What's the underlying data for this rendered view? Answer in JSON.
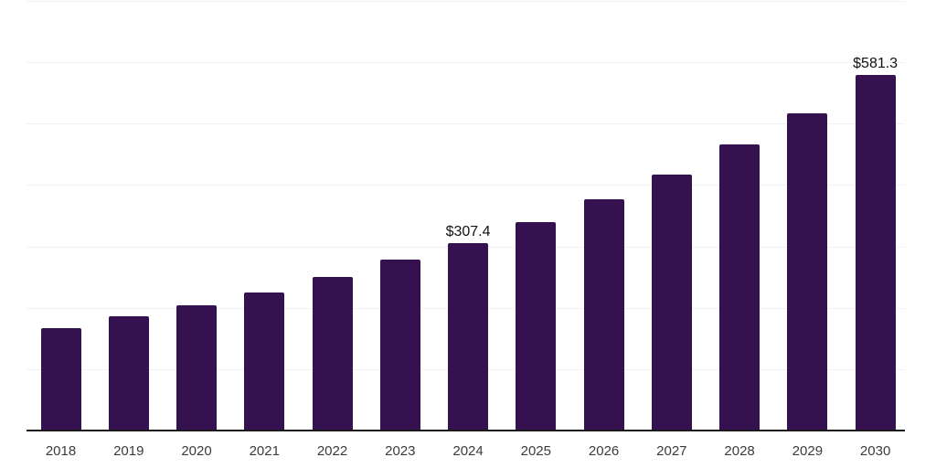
{
  "chart_data": {
    "type": "bar",
    "title": "",
    "xlabel": "",
    "ylabel": "",
    "categories": [
      "2018",
      "2019",
      "2020",
      "2021",
      "2022",
      "2023",
      "2024",
      "2025",
      "2026",
      "2027",
      "2028",
      "2029",
      "2030"
    ],
    "values": [
      169,
      187,
      206,
      227,
      251,
      280,
      307.4,
      341,
      378,
      419,
      467,
      518,
      581.3
    ],
    "value_prefix": "$",
    "data_labels": [
      {
        "category": "2024",
        "text": "$307.4"
      },
      {
        "category": "2030",
        "text": "$581.3"
      }
    ],
    "ylim": [
      0,
      700
    ],
    "gridline_step": 100,
    "grid": "horizontal",
    "y_tick_labels_visible": false,
    "legend": "none"
  },
  "colors": {
    "bar": "#361150",
    "axis_line": "#1a1a1a",
    "gridline": "#f2f2f2",
    "tick_label": "#3b3b3b",
    "data_label": "#111111",
    "background": "#ffffff"
  }
}
